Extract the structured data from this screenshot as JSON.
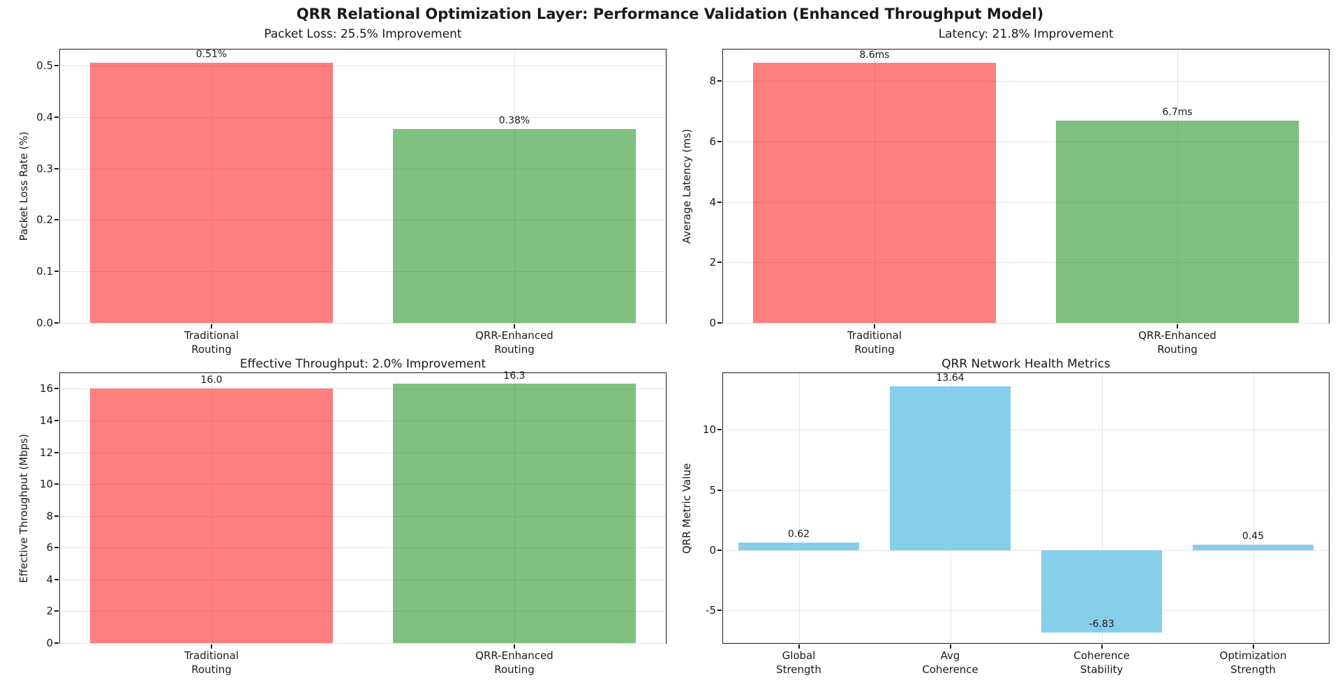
{
  "figure": {
    "title": "QRR Relational Optimization Layer: Performance Validation (Enhanced Throughput Model)"
  },
  "chart_data": [
    {
      "type": "bar",
      "title": "Packet Loss: 25.5% Improvement",
      "xlabel": "",
      "ylabel": "Packet Loss Rate (%)",
      "categories": [
        "Traditional\nRouting",
        "QRR-Enhanced\nRouting"
      ],
      "values": [
        0.505,
        0.377
      ],
      "bar_labels": [
        "0.51%",
        "0.38%"
      ],
      "colors": [
        "rgba(255,0,0,0.5)",
        "rgba(0,128,0,0.5)"
      ],
      "ylim": [
        0,
        0.531
      ],
      "yticks": [
        0.0,
        0.1,
        0.2,
        0.3,
        0.4,
        0.5
      ],
      "ytick_labels": [
        "0.0",
        "0.1",
        "0.2",
        "0.3",
        "0.4",
        "0.5"
      ],
      "grid": true,
      "legend": false
    },
    {
      "type": "bar",
      "title": "Latency: 21.8% Improvement",
      "xlabel": "",
      "ylabel": "Average Latency (ms)",
      "categories": [
        "Traditional\nRouting",
        "QRR-Enhanced\nRouting"
      ],
      "values": [
        8.6,
        6.7
      ],
      "bar_labels": [
        "8.6ms",
        "6.7ms"
      ],
      "colors": [
        "rgba(255,0,0,0.5)",
        "rgba(0,128,0,0.5)"
      ],
      "ylim": [
        0,
        9.05
      ],
      "yticks": [
        0,
        2,
        4,
        6,
        8
      ],
      "ytick_labels": [
        "0",
        "2",
        "4",
        "6",
        "8"
      ],
      "grid": true,
      "legend": false
    },
    {
      "type": "bar",
      "title": "Effective Throughput: 2.0% Improvement",
      "xlabel": "",
      "ylabel": "Effective Throughput (Mbps)",
      "categories": [
        "Traditional\nRouting",
        "QRR-Enhanced\nRouting"
      ],
      "values": [
        16.0,
        16.3
      ],
      "bar_labels": [
        "16.0",
        "16.3"
      ],
      "colors": [
        "rgba(255,0,0,0.5)",
        "rgba(0,128,0,0.5)"
      ],
      "ylim": [
        0,
        16.98
      ],
      "yticks": [
        0,
        2,
        4,
        6,
        8,
        10,
        12,
        14,
        16
      ],
      "ytick_labels": [
        "0",
        "2",
        "4",
        "6",
        "8",
        "10",
        "12",
        "14",
        "16"
      ],
      "grid": true,
      "legend": false
    },
    {
      "type": "bar",
      "title": "QRR Network Health Metrics",
      "xlabel": "",
      "ylabel": "QRR Metric Value",
      "categories": [
        "Global\nStrength",
        "Avg\nCoherence",
        "Coherence\nStability",
        "Optimization\nStrength"
      ],
      "values": [
        0.62,
        13.64,
        -6.83,
        0.45
      ],
      "bar_labels": [
        "0.62",
        "13.64",
        "-6.83",
        "0.45"
      ],
      "colors": [
        "#87ceeb",
        "#87ceeb",
        "#87ceeb",
        "#87ceeb"
      ],
      "ylim": [
        -7.7,
        14.72
      ],
      "yticks": [
        -5,
        0,
        5,
        10
      ],
      "ytick_labels": [
        "-5",
        "0",
        "5",
        "10"
      ],
      "grid": true,
      "legend": false
    }
  ]
}
